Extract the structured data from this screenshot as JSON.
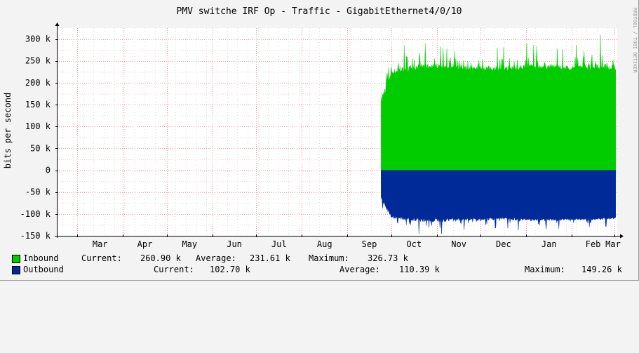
{
  "chart_data": {
    "type": "area",
    "title": "PMV switche IRF Op - Traffic - GigabitEthernet4/0/10",
    "ylabel": "bits per second",
    "watermark": "RRDTOOL / TOBI OETIKER",
    "ylim": [
      -150000,
      325000
    ],
    "y_ticks": [
      {
        "value": 300000,
        "label": "300 k"
      },
      {
        "value": 250000,
        "label": "250 k"
      },
      {
        "value": 200000,
        "label": "200 k"
      },
      {
        "value": 150000,
        "label": "150 k"
      },
      {
        "value": 100000,
        "label": "100 k"
      },
      {
        "value": 50000,
        "label": "50 k"
      },
      {
        "value": 0,
        "label": "0"
      },
      {
        "value": -50000,
        "label": "-50 k"
      },
      {
        "value": -100000,
        "label": "-100 k"
      },
      {
        "value": -150000,
        "label": "-150 k"
      }
    ],
    "xlim": [
      "2023-02-15",
      "2024-03-03"
    ],
    "x_ticks": [
      {
        "date": "2023-03-01",
        "label": "Mar"
      },
      {
        "date": "2023-04-01",
        "label": "Apr"
      },
      {
        "date": "2023-05-01",
        "label": "May"
      },
      {
        "date": "2023-06-01",
        "label": "Jun"
      },
      {
        "date": "2023-07-01",
        "label": "Jul"
      },
      {
        "date": "2023-08-01",
        "label": "Aug"
      },
      {
        "date": "2023-09-01",
        "label": "Sep"
      },
      {
        "date": "2023-10-01",
        "label": "Oct"
      },
      {
        "date": "2023-11-01",
        "label": "Nov"
      },
      {
        "date": "2023-12-01",
        "label": "Dec"
      },
      {
        "date": "2024-01-01",
        "label": "Jan"
      },
      {
        "date": "2024-02-01",
        "label": "Feb"
      },
      {
        "date": "2024-03-01",
        "label": "Mar"
      }
    ],
    "grid": true,
    "colors": {
      "inbound": "#00cc00",
      "outbound": "#002a97",
      "background": "#f3f3f3",
      "plot_background": "#ffffff",
      "grid": "#e8a0a0",
      "text": "#000000"
    },
    "series": [
      {
        "name": "Inbound",
        "data_start": "2023-09-24",
        "data_end": "2024-03-02",
        "x": [
          "2023-09-24",
          "2023-10-01",
          "2023-10-15",
          "2023-11-01",
          "2023-11-15",
          "2023-12-01",
          "2023-12-15",
          "2024-01-01",
          "2024-01-15",
          "2024-02-01",
          "2024-02-15",
          "2024-03-01"
        ],
        "values": [
          150000,
          220000,
          230000,
          235000,
          232000,
          230000,
          228000,
          232000,
          234000,
          230000,
          233000,
          232000
        ],
        "peaks": [
          250000,
          270000,
          295000,
          285000,
          270000,
          275000,
          280000,
          290000,
          280000,
          275000,
          326730,
          280000
        ],
        "stats": {
          "current": "260.90 k",
          "average": "231.61 k",
          "maximum": "326.73 k"
        }
      },
      {
        "name": "Outbound",
        "data_start": "2023-09-24",
        "data_end": "2024-03-02",
        "x": [
          "2023-09-24",
          "2023-10-01",
          "2023-10-15",
          "2023-11-01",
          "2023-11-15",
          "2023-12-01",
          "2023-12-15",
          "2024-01-01",
          "2024-01-15",
          "2024-02-01",
          "2024-02-15",
          "2024-03-01"
        ],
        "values": [
          -60000,
          -105000,
          -110000,
          -112000,
          -110000,
          -110000,
          -108000,
          -111000,
          -112000,
          -110000,
          -110000,
          -108000
        ],
        "peaks": [
          -100000,
          -130000,
          -145000,
          -149260,
          -135000,
          -138000,
          -130000,
          -140000,
          -135000,
          -132000,
          -130000,
          -128000
        ],
        "stats": {
          "current": "102.70 k",
          "average": "110.39 k",
          "maximum": "149.26 k"
        }
      }
    ]
  },
  "legend": {
    "inbound": {
      "label": "Inbound",
      "current_label": "Current:",
      "current": "260.90 k",
      "average_label": "Average:",
      "average": "231.61 k",
      "maximum_label": "Maximum:",
      "maximum": "326.73 k"
    },
    "outbound": {
      "label": "Outbound",
      "current_label": "Current:",
      "current": "102.70 k",
      "average_label": "Average:",
      "average": "110.39 k",
      "maximum_label": "Maximum:",
      "maximum": "149.26 k"
    }
  }
}
